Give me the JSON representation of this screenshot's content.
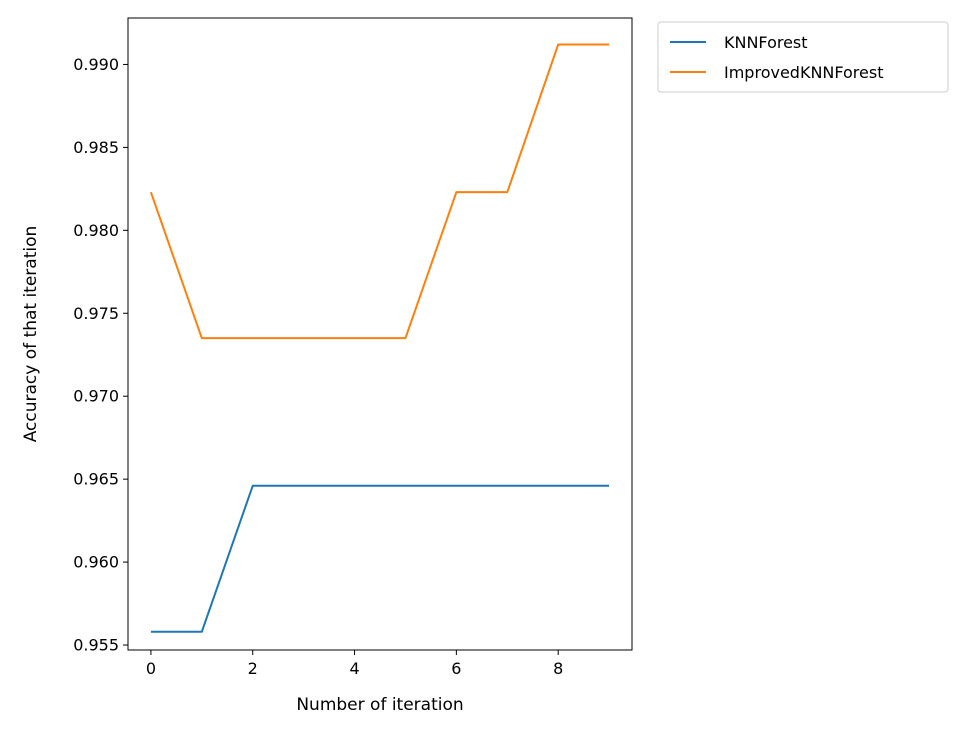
{
  "chart_data": {
    "type": "line",
    "xlabel": "Number of iteration",
    "ylabel": "Accuracy of that iteration",
    "x": [
      0,
      1,
      2,
      3,
      4,
      5,
      6,
      7,
      8,
      9
    ],
    "xlim": [
      -0.45,
      9.45
    ],
    "ylim": [
      0.9547,
      0.9928
    ],
    "x_ticks": [
      0,
      2,
      4,
      6,
      8
    ],
    "y_ticks": [
      0.955,
      0.96,
      0.965,
      0.97,
      0.975,
      0.98,
      0.985,
      0.99
    ],
    "y_tick_labels": [
      "0.955",
      "0.960",
      "0.965",
      "0.970",
      "0.975",
      "0.980",
      "0.985",
      "0.990"
    ],
    "grid": false,
    "legend_position": "outside-top-right",
    "series": [
      {
        "name": "KNNForest",
        "color": "#1f77b4",
        "values": [
          0.9558,
          0.9558,
          0.9646,
          0.9646,
          0.9646,
          0.9646,
          0.9646,
          0.9646,
          0.9646,
          0.9646
        ]
      },
      {
        "name": "ImprovedKNNForest",
        "color": "#ff7f0e",
        "values": [
          0.9823,
          0.9735,
          0.9735,
          0.9735,
          0.9735,
          0.9735,
          0.9823,
          0.9823,
          0.9912,
          0.9912
        ]
      }
    ]
  }
}
